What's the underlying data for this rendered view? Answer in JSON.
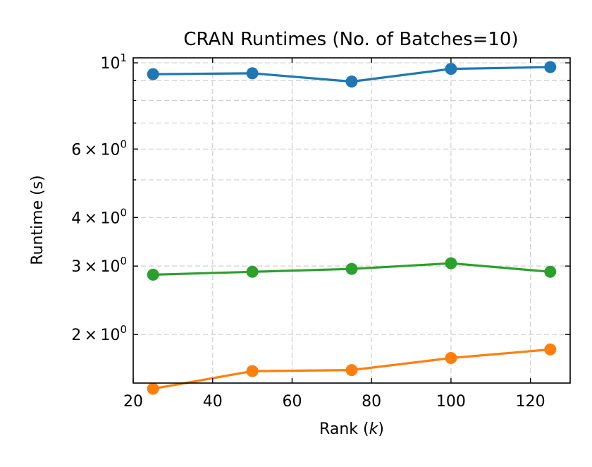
{
  "chart_data": {
    "type": "line",
    "title": "CRAN Runtimes (No. of Batches=10)",
    "xlabel": "Rank (",
    "xlabel_var": "k",
    "xlabel_close": ")",
    "ylabel": "Runtime (s)",
    "y_scale": "log",
    "xlim": [
      20,
      130
    ],
    "ylim": [
      1.5,
      10.3
    ],
    "x_ticks": [
      20,
      40,
      60,
      80,
      100,
      120
    ],
    "y_ticks": [
      {
        "value": 10,
        "mantissa": "",
        "base": "10",
        "exp": "1"
      },
      {
        "value": 6,
        "mantissa": "6",
        "base": "10",
        "exp": "0"
      },
      {
        "value": 4,
        "mantissa": "4",
        "base": "10",
        "exp": "0"
      },
      {
        "value": 3,
        "mantissa": "3",
        "base": "10",
        "exp": "0"
      },
      {
        "value": 2,
        "mantissa": "2",
        "base": "10",
        "exp": "0"
      }
    ],
    "y_minor_ticks": [
      5,
      7,
      8,
      9
    ],
    "grid": true,
    "x": [
      25,
      50,
      75,
      100,
      125
    ],
    "series": [
      {
        "color": "#1f77b4",
        "values": [
          9.35,
          9.4,
          8.95,
          9.65,
          9.75
        ]
      },
      {
        "color": "#2ca02c",
        "values": [
          2.85,
          2.9,
          2.95,
          3.05,
          2.9
        ]
      },
      {
        "color": "#ff7f0e",
        "values": [
          1.45,
          1.61,
          1.62,
          1.74,
          1.83
        ]
      }
    ]
  }
}
